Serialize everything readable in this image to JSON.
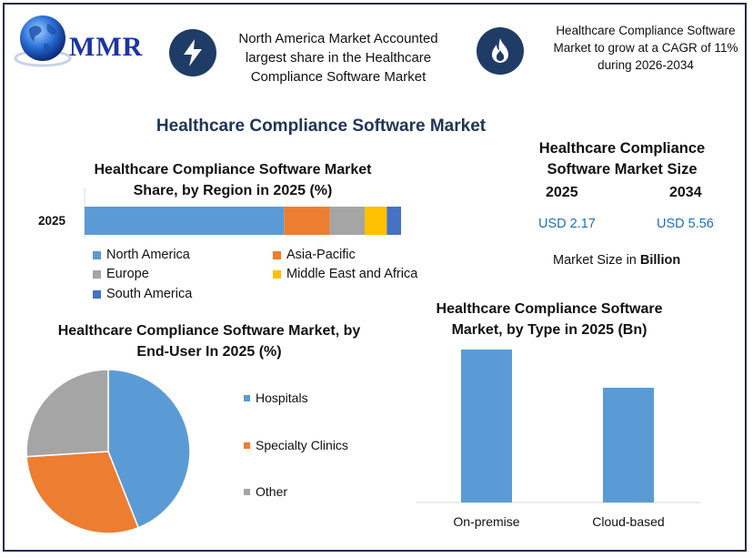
{
  "brand": {
    "logo_text": "MMR"
  },
  "callouts": [
    {
      "icon": "lightning-icon",
      "text": "North America Market Accounted largest share in the Healthcare Compliance Software Market"
    },
    {
      "icon": "flame-icon",
      "text": "Healthcare Compliance Software Market to grow at a CAGR of 11% during 2026-2034"
    }
  ],
  "main_title": "Healthcare Compliance Software Market",
  "market_size": {
    "title": "Healthcare Compliance Software Market Size",
    "years": [
      "2025",
      "2034"
    ],
    "values": [
      "USD 2.17",
      "USD 5.56"
    ],
    "unit_prefix": "Market Size in",
    "unit_bold": "Billion"
  },
  "colors": {
    "blue": "#5b9bd5",
    "orange": "#ed7d31",
    "gray": "#a5a5a5",
    "yellow": "#ffc000",
    "darkblue": "#4472c4",
    "navy": "#1f3c66"
  },
  "chart_data": [
    {
      "type": "bar",
      "orientation": "horizontal-stacked",
      "title": "Healthcare Compliance Software Market Share, by Region in 2025 (%)",
      "categories": [
        "2025"
      ],
      "series": [
        {
          "name": "North America",
          "values": [
            63
          ]
        },
        {
          "name": "Asia-Pacific",
          "values": [
            14.5
          ]
        },
        {
          "name": "Europe",
          "values": [
            11
          ]
        },
        {
          "name": "Middle East and Africa",
          "values": [
            7
          ]
        },
        {
          "name": "South America",
          "values": [
            4.5
          ]
        }
      ],
      "xlim": [
        0,
        100
      ],
      "legend": "bottom",
      "grid": false
    },
    {
      "type": "pie",
      "title": "Healthcare Compliance Software Market, by End-User In 2025 (%)",
      "labels": [
        "Hospitals",
        "Specialty Clinics",
        "Other"
      ],
      "values": [
        44,
        30,
        26
      ],
      "legend": "right"
    },
    {
      "type": "bar",
      "title": "Healthcare Compliance Software Market, by Type in 2025 (Bn)",
      "categories": [
        "On-premise",
        "Cloud-based"
      ],
      "values": [
        1.2,
        0.9
      ],
      "ylim": [
        0,
        1.2
      ],
      "grid": false
    }
  ]
}
